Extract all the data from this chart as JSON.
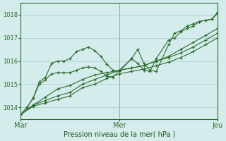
{
  "bg_color": "#d4ecec",
  "grid_color": "#aacccc",
  "line_color": "#2d6e2d",
  "marker_color": "#2d6e2d",
  "xlabel": "Pression niveau de la mer( hPa )",
  "xlabel_color": "#1a5c1a",
  "tick_color": "#2d6e2d",
  "ylim": [
    1013.5,
    1018.5
  ],
  "yticks": [
    1014,
    1015,
    1016,
    1017,
    1018
  ],
  "x_ticks_labels": [
    "Mar",
    "Mer",
    "Jeu"
  ],
  "x_ticks_positions": [
    0,
    48,
    96
  ],
  "xlim": [
    0,
    96
  ],
  "series": [
    [
      0,
      1013.7,
      3,
      1014.0,
      6,
      1014.4,
      9,
      1015.1,
      12,
      1015.3,
      15,
      1015.9,
      18,
      1016.0,
      21,
      1016.0,
      24,
      1016.1,
      27,
      1016.4,
      30,
      1016.5,
      33,
      1016.6,
      36,
      1016.45,
      39,
      1016.2,
      42,
      1015.85,
      45,
      1015.6,
      48,
      1015.55,
      54,
      1016.1,
      57,
      1015.9,
      60,
      1015.6,
      63,
      1015.55,
      66,
      1016.1,
      72,
      1016.9,
      75,
      1017.0,
      78,
      1017.25,
      81,
      1017.4,
      84,
      1017.5,
      87,
      1017.7,
      90,
      1017.75,
      93,
      1017.8,
      96,
      1018.1
    ],
    [
      0,
      1013.7,
      3,
      1014.0,
      6,
      1014.4,
      9,
      1015.0,
      12,
      1015.2,
      15,
      1015.45,
      18,
      1015.5,
      21,
      1015.5,
      24,
      1015.5,
      27,
      1015.6,
      30,
      1015.7,
      33,
      1015.75,
      36,
      1015.7,
      39,
      1015.55,
      42,
      1015.35,
      45,
      1015.3,
      48,
      1015.6,
      54,
      1016.1,
      57,
      1016.5,
      60,
      1015.9,
      63,
      1015.6,
      66,
      1015.55,
      72,
      1016.7,
      75,
      1017.2,
      78,
      1017.3,
      81,
      1017.5,
      84,
      1017.6,
      87,
      1017.7,
      90,
      1017.75,
      93,
      1017.8,
      96,
      1018.05
    ],
    [
      0,
      1013.7,
      6,
      1014.1,
      12,
      1014.45,
      18,
      1014.8,
      24,
      1014.95,
      30,
      1015.2,
      36,
      1015.4,
      42,
      1015.5,
      48,
      1015.6,
      54,
      1015.7,
      60,
      1015.8,
      66,
      1016.0,
      72,
      1016.2,
      78,
      1016.5,
      84,
      1016.8,
      90,
      1017.1,
      96,
      1017.4
    ],
    [
      0,
      1013.7,
      6,
      1014.1,
      12,
      1014.3,
      18,
      1014.5,
      24,
      1014.65,
      30,
      1015.0,
      36,
      1015.2,
      42,
      1015.4,
      48,
      1015.6,
      54,
      1015.7,
      60,
      1015.8,
      66,
      1016.0,
      72,
      1016.15,
      78,
      1016.35,
      84,
      1016.6,
      90,
      1016.9,
      96,
      1017.2
    ],
    [
      0,
      1013.7,
      6,
      1014.05,
      12,
      1014.2,
      18,
      1014.35,
      24,
      1014.5,
      30,
      1014.85,
      36,
      1015.0,
      42,
      1015.25,
      48,
      1015.45,
      54,
      1015.55,
      60,
      1015.65,
      66,
      1015.8,
      72,
      1015.95,
      78,
      1016.15,
      84,
      1016.4,
      90,
      1016.7,
      96,
      1017.0
    ]
  ]
}
